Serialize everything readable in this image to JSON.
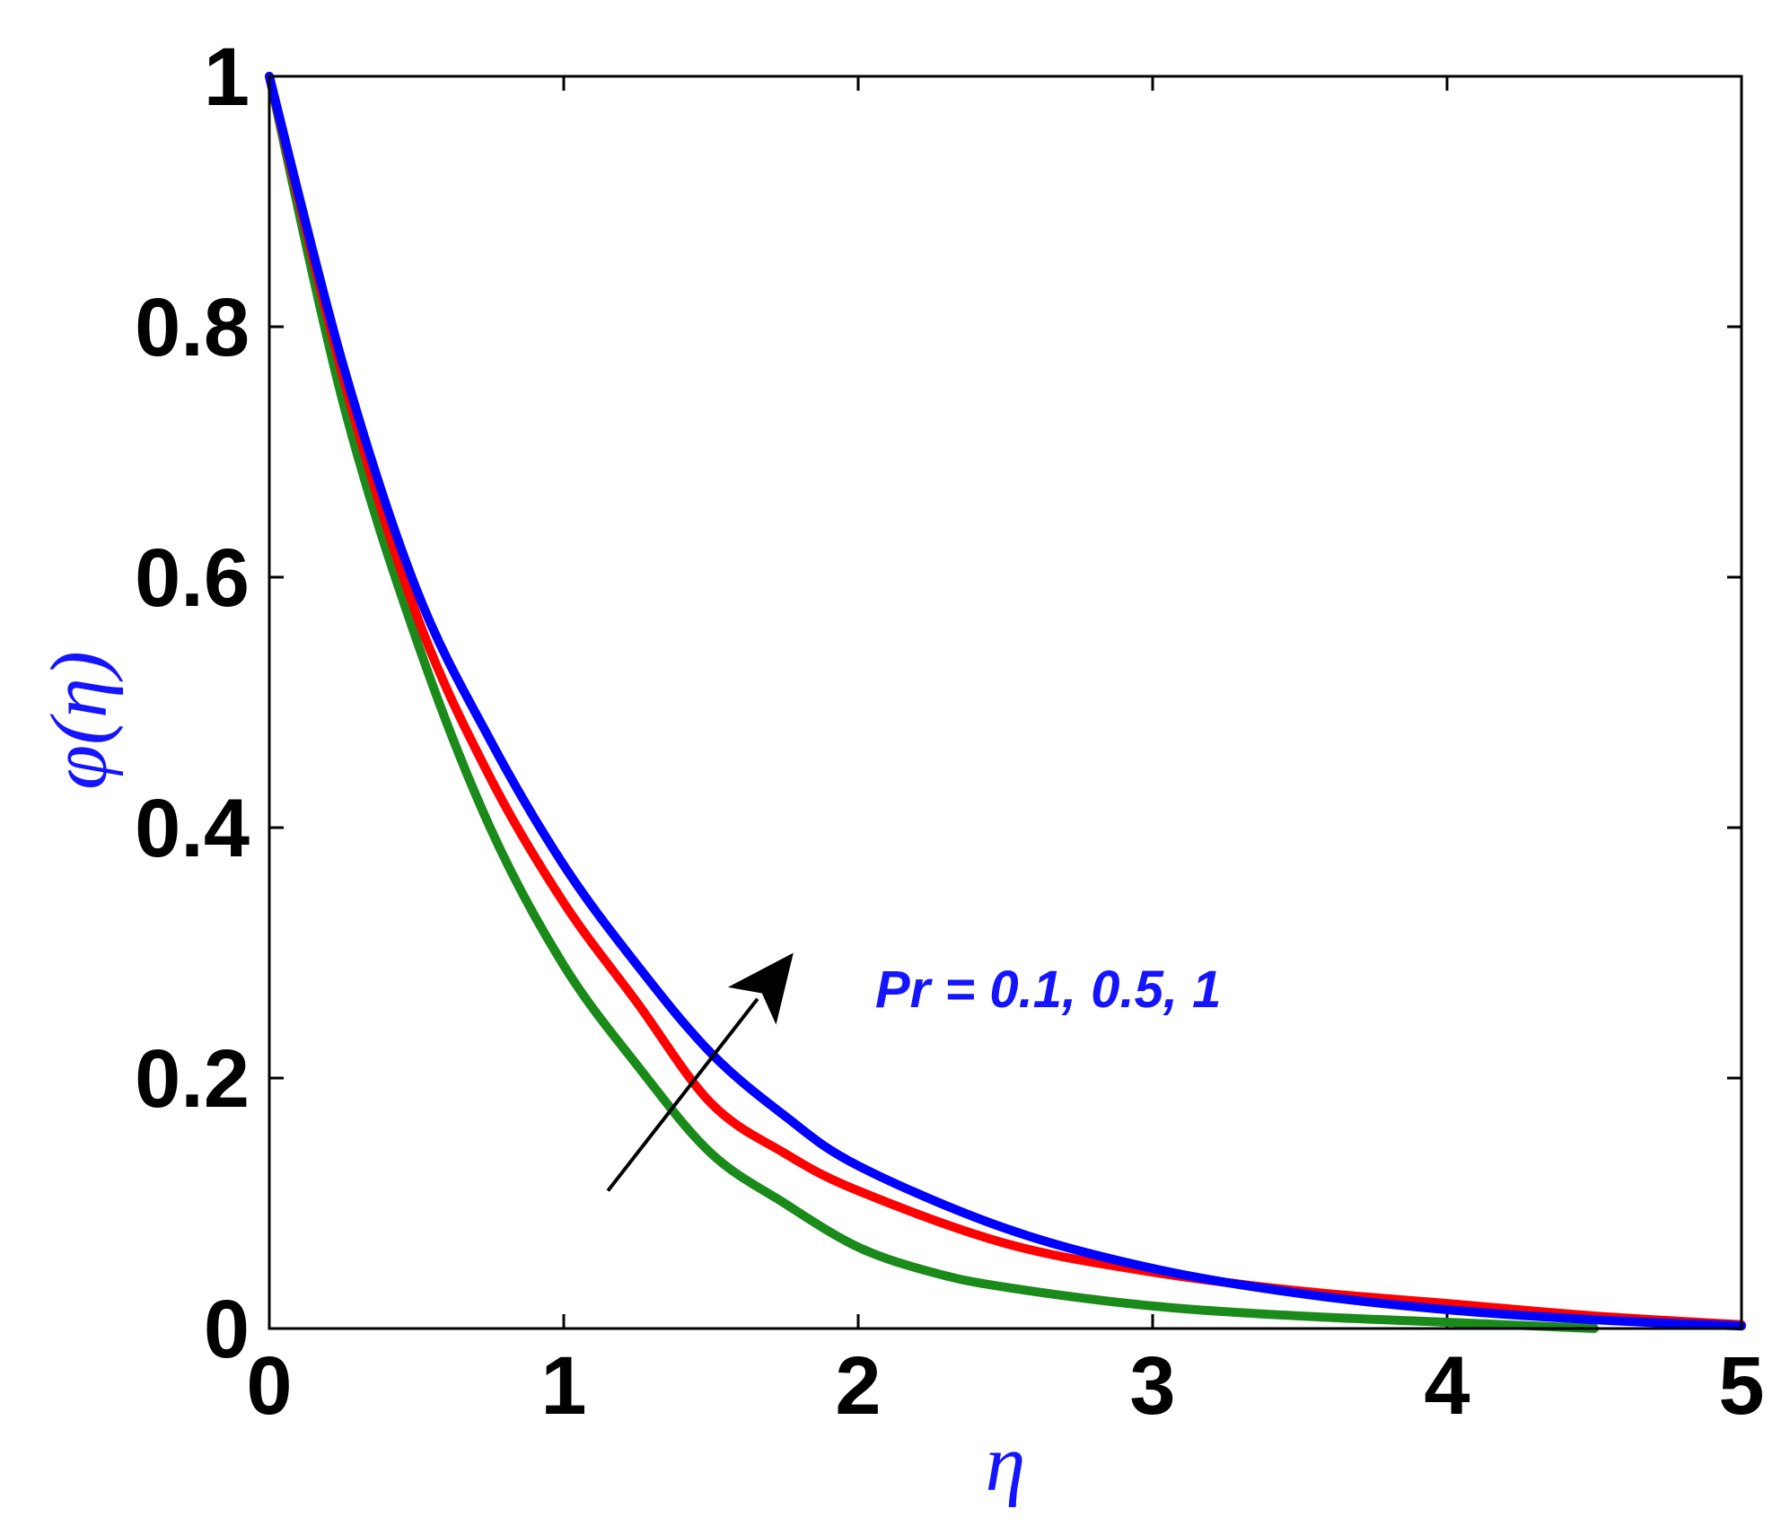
{
  "chart_data": {
    "type": "line",
    "xlabel": "η",
    "ylabel": "φ(η)",
    "xlim": [
      0,
      5
    ],
    "ylim": [
      0,
      1
    ],
    "xticks": [
      "0",
      "1",
      "2",
      "3",
      "4",
      "5"
    ],
    "yticks": [
      "0",
      "0.2",
      "0.4",
      "0.6",
      "0.8",
      "1"
    ],
    "grid": false,
    "legend": "none",
    "annotation": {
      "text": "Pr = 0.1, 0.5, 1",
      "color": "#1414ff",
      "arrow_from": [
        1.15,
        0.11
      ],
      "arrow_to": [
        1.78,
        0.3
      ]
    },
    "colors": {
      "axis": "#000000",
      "label": "#1414ff"
    },
    "series": [
      {
        "color": "#1a8a1a",
        "x": [
          0,
          0.25,
          0.5,
          0.75,
          1.0,
          1.25,
          1.5,
          1.75,
          2.0,
          2.25,
          2.5,
          3.0,
          3.5,
          4.0,
          4.5
        ],
        "y": [
          1.0,
          0.74,
          0.55,
          0.4,
          0.29,
          0.21,
          0.14,
          0.1,
          0.065,
          0.045,
          0.033,
          0.018,
          0.01,
          0.005,
          0.0
        ]
      },
      {
        "color": "#ff0000",
        "x": [
          0,
          0.25,
          0.5,
          0.75,
          1.0,
          1.25,
          1.5,
          1.75,
          2.0,
          2.5,
          3.0,
          3.5,
          4.0,
          4.5,
          5.0
        ],
        "y": [
          1.0,
          0.76,
          0.57,
          0.44,
          0.34,
          0.26,
          0.18,
          0.14,
          0.11,
          0.068,
          0.045,
          0.03,
          0.02,
          0.01,
          0.003
        ]
      },
      {
        "color": "#0000ff",
        "x": [
          0,
          0.25,
          0.5,
          0.75,
          1.0,
          1.25,
          1.5,
          1.75,
          2.0,
          2.5,
          3.0,
          3.5,
          4.0,
          4.5,
          5.0
        ],
        "y": [
          1.0,
          0.77,
          0.59,
          0.47,
          0.37,
          0.29,
          0.22,
          0.17,
          0.13,
          0.08,
          0.048,
          0.028,
          0.015,
          0.007,
          0.002
        ]
      }
    ]
  }
}
